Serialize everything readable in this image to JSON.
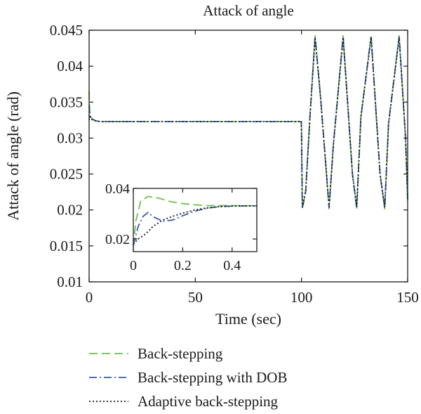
{
  "chart_data": [
    {
      "type": "line",
      "title": "Attack of angle",
      "xlabel": "Time (sec)",
      "ylabel": "Attack of angle (rad)",
      "xlim": [
        0,
        150
      ],
      "ylim": [
        0.01,
        0.045
      ],
      "x_ticks": [
        "0",
        "50",
        "100",
        "150"
      ],
      "y_ticks": [
        "0.01",
        "0.015",
        "0.02",
        "0.025",
        "0.03",
        "0.035",
        "0.04",
        "0.045"
      ],
      "grid": false,
      "legend_position": "below",
      "series": [
        {
          "name": "Back-stepping",
          "color": "#6cc04a",
          "dash": "dashed",
          "points": [
            [
              0,
              0.0365
            ],
            [
              0.3,
              0.0335
            ],
            [
              1,
              0.0328
            ],
            [
              3,
              0.0324
            ],
            [
              5,
              0.0323
            ],
            [
              99.9,
              0.0323
            ],
            [
              100,
              0.0312
            ],
            [
              100.4,
              0.0201
            ],
            [
              102,
              0.0225
            ],
            [
              104,
              0.033
            ],
            [
              106.4,
              0.0443
            ],
            [
              109,
              0.0356
            ],
            [
              113,
              0.0201
            ],
            [
              115,
              0.029
            ],
            [
              119.6,
              0.0443
            ],
            [
              124,
              0.025
            ],
            [
              126,
              0.0201
            ],
            [
              128,
              0.033
            ],
            [
              132.8,
              0.0443
            ],
            [
              137,
              0.025
            ],
            [
              139.2,
              0.0201
            ],
            [
              141,
              0.032
            ],
            [
              146,
              0.0443
            ],
            [
              149,
              0.03
            ],
            [
              150,
              0.0213
            ]
          ]
        },
        {
          "name": "Back-stepping with DOB",
          "color": "#3a5ba8",
          "dash": "dashdot",
          "points": [
            [
              0,
              0.0345
            ],
            [
              0.3,
              0.0335
            ],
            [
              1,
              0.0327
            ],
            [
              3,
              0.0324
            ],
            [
              5,
              0.0323
            ],
            [
              99.9,
              0.0323
            ],
            [
              100,
              0.0312
            ],
            [
              100.4,
              0.0203
            ],
            [
              102,
              0.0227
            ],
            [
              104,
              0.033
            ],
            [
              106.4,
              0.0441
            ],
            [
              109,
              0.0356
            ],
            [
              113,
              0.0203
            ],
            [
              115,
              0.029
            ],
            [
              119.6,
              0.0441
            ],
            [
              124,
              0.025
            ],
            [
              126,
              0.0203
            ],
            [
              128,
              0.033
            ],
            [
              132.8,
              0.0441
            ],
            [
              137,
              0.025
            ],
            [
              139.2,
              0.0203
            ],
            [
              141,
              0.032
            ],
            [
              146,
              0.0441
            ],
            [
              149,
              0.03
            ],
            [
              150,
              0.0215
            ]
          ]
        },
        {
          "name": "Adaptive back-stepping",
          "color": "#1a1a1a",
          "dash": "dotted",
          "points": [
            [
              0,
              0.0325
            ],
            [
              0.3,
              0.033
            ],
            [
              1,
              0.0326
            ],
            [
              3,
              0.0324
            ],
            [
              5,
              0.0323
            ],
            [
              99.9,
              0.0323
            ],
            [
              100,
              0.0312
            ],
            [
              100.4,
              0.0204
            ],
            [
              102,
              0.0227
            ],
            [
              104,
              0.033
            ],
            [
              106.4,
              0.044
            ],
            [
              109,
              0.0356
            ],
            [
              113,
              0.0204
            ],
            [
              115,
              0.029
            ],
            [
              119.6,
              0.044
            ],
            [
              124,
              0.025
            ],
            [
              126,
              0.0204
            ],
            [
              128,
              0.033
            ],
            [
              132.8,
              0.044
            ],
            [
              137,
              0.025
            ],
            [
              139.2,
              0.0204
            ],
            [
              141,
              0.032
            ],
            [
              146,
              0.044
            ],
            [
              149,
              0.03
            ],
            [
              150,
              0.0216
            ]
          ]
        }
      ]
    },
    {
      "type": "line",
      "title": "",
      "xlim": [
        0,
        0.5
      ],
      "ylim": [
        0.015,
        0.04
      ],
      "x_ticks": [
        "0",
        "0.2",
        "0.4"
      ],
      "y_ticks": [
        "0.02",
        "0.04"
      ],
      "series": [
        {
          "color": "#6cc04a",
          "dash": "dashed",
          "points": [
            [
              0,
              0.017
            ],
            [
              0.01,
              0.027
            ],
            [
              0.03,
              0.035
            ],
            [
              0.06,
              0.0368
            ],
            [
              0.1,
              0.0362
            ],
            [
              0.15,
              0.0348
            ],
            [
              0.2,
              0.034
            ],
            [
              0.25,
              0.0335
            ],
            [
              0.3,
              0.0332
            ],
            [
              0.4,
              0.0332
            ],
            [
              0.5,
              0.0331
            ]
          ]
        },
        {
          "color": "#3a5ba8",
          "dash": "dashdot",
          "points": [
            [
              0,
              0.0175
            ],
            [
              0.02,
              0.025
            ],
            [
              0.04,
              0.029
            ],
            [
              0.06,
              0.0305
            ],
            [
              0.08,
              0.0288
            ],
            [
              0.12,
              0.027
            ],
            [
              0.16,
              0.0275
            ],
            [
              0.2,
              0.0292
            ],
            [
              0.25,
              0.031
            ],
            [
              0.3,
              0.0322
            ],
            [
              0.35,
              0.0328
            ],
            [
              0.4,
              0.033
            ],
            [
              0.5,
              0.0331
            ]
          ]
        },
        {
          "color": "#1a1a1a",
          "dash": "dotted",
          "points": [
            [
              0,
              0.018
            ],
            [
              0.02,
              0.02
            ],
            [
              0.05,
              0.022
            ],
            [
              0.08,
              0.025
            ],
            [
              0.12,
              0.0275
            ],
            [
              0.16,
              0.029
            ],
            [
              0.2,
              0.0302
            ],
            [
              0.25,
              0.0315
            ],
            [
              0.3,
              0.0323
            ],
            [
              0.35,
              0.0328
            ],
            [
              0.4,
              0.033
            ],
            [
              0.5,
              0.0331
            ]
          ]
        }
      ]
    }
  ]
}
